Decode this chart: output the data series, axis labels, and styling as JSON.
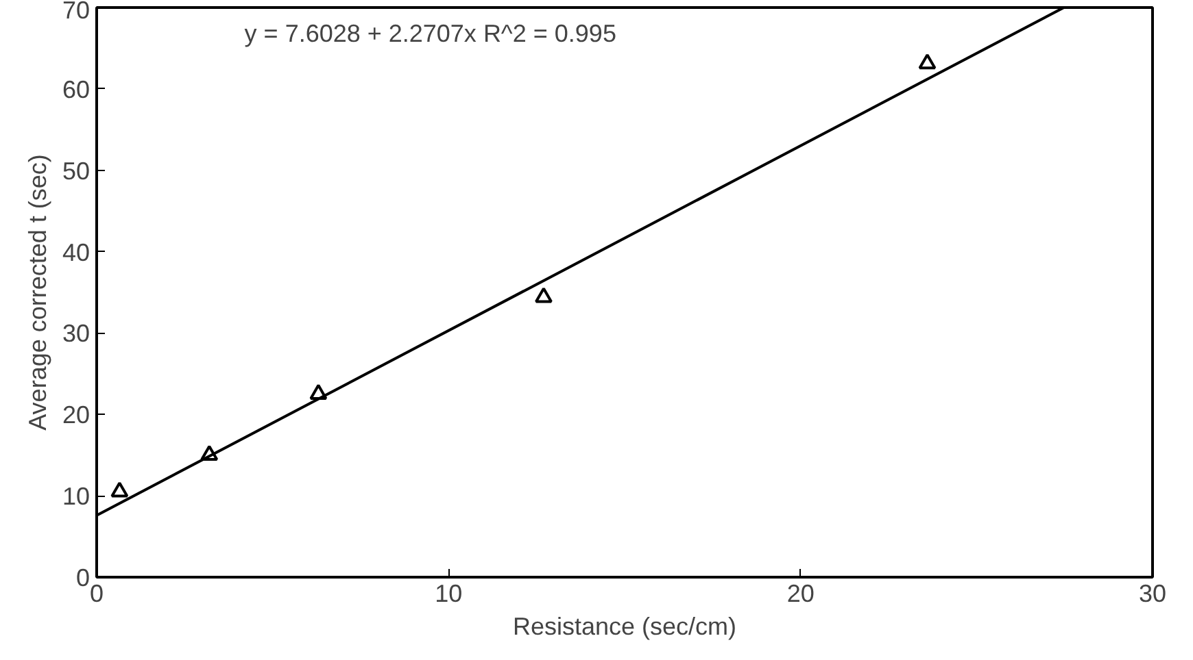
{
  "chart_data": {
    "type": "scatter",
    "xlabel": "Resistance (sec/cm)",
    "ylabel": "Average corrected t (sec)",
    "annotations": [
      "y = 7.6028 + 2.2707x   R^2 = 0.995"
    ],
    "xlim": [
      0,
      30
    ],
    "ylim": [
      0,
      70
    ],
    "xticks": [
      0,
      10,
      20,
      30
    ],
    "yticks": [
      0,
      10,
      20,
      30,
      40,
      50,
      60,
      70
    ],
    "grid": false,
    "marker": "triangle",
    "series": [
      {
        "color": "#000000",
        "x": [
          0.65,
          3.2,
          6.3,
          12.7,
          23.6
        ],
        "values": [
          10.5,
          15,
          22.5,
          34.4,
          63.1
        ]
      },
      {
        "type": "line",
        "color": "#000000",
        "line_style": "solid",
        "marker": "none",
        "x": [
          0,
          27.48
        ],
        "values": [
          7.6,
          70
        ]
      }
    ]
  }
}
